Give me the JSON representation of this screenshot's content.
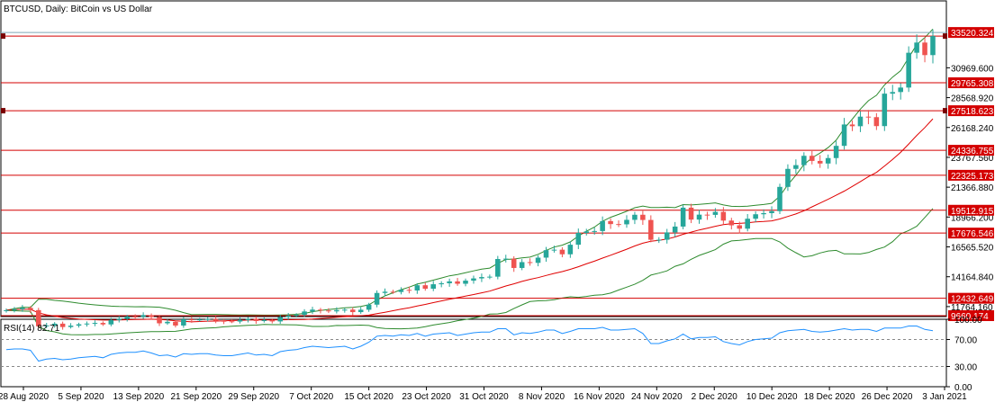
{
  "chart_data": [
    {
      "type": "candlestick",
      "title": "BTCUSD, Daily:  BitCoin vs US Dollar",
      "ylim": [
        10961,
        35120
      ],
      "y_ticks": [
        "30969.600",
        "28568.920",
        "26168.240",
        "23767.560",
        "21366.880",
        "18966.200",
        "16565.520",
        "14164.840",
        "11764.160"
      ],
      "x_ticks": [
        "28 Aug 2020",
        "5 Sep 2020",
        "13 Sep 2020",
        "21 Sep 2020",
        "29 Sep 2020",
        "7 Oct 2020",
        "15 Oct 2020",
        "23 Oct 2020",
        "31 Oct 2020",
        "8 Nov 2020",
        "16 Nov 2020",
        "24 Nov 2020",
        "2 Dec 2020",
        "10 Dec 2020",
        "18 Dec 2020",
        "26 Dec 2020",
        "3 Jan 2021"
      ],
      "levels": [
        "33520.324",
        "29765.308",
        "27518.623",
        "24336.755",
        "22325.173",
        "19512.915",
        "17676.546",
        "12432.649",
        "9660.174"
      ],
      "marked_levels": [
        "33520.324",
        "27518.623"
      ],
      "current_price": "33520.324",
      "colors": {
        "bull": "#26a69a",
        "bear": "#ef5350",
        "level": "#d40000",
        "price_line": "#7fa6b8",
        "ma": "#e00000",
        "bands": "#2e8b2e"
      },
      "close": [
        11470,
        11550,
        11660,
        11480,
        10180,
        10250,
        10390,
        10120,
        10230,
        10340,
        10400,
        10450,
        10330,
        10680,
        10790,
        10970,
        10940,
        11080,
        10920,
        10420,
        10540,
        10240,
        10740,
        10690,
        10730,
        10770,
        10620,
        10580,
        10560,
        10680,
        10790,
        10600,
        10680,
        10570,
        10920,
        11030,
        11100,
        11370,
        11520,
        11450,
        11380,
        11480,
        11520,
        11320,
        11510,
        11920,
        12860,
        12960,
        12940,
        13110,
        13060,
        13480,
        13200,
        13560,
        13640,
        13790,
        13600,
        13850,
        14030,
        14140,
        14170,
        15590,
        15620,
        14870,
        15340,
        15280,
        15700,
        16300,
        16340,
        15970,
        16740,
        17690,
        17810,
        17840,
        18640,
        18400,
        18380,
        18740,
        19150,
        18730,
        17140,
        17140,
        17730,
        18200,
        19720,
        18760,
        19160,
        19140,
        19380,
        18680,
        18300,
        18030,
        18830,
        19190,
        19280,
        19440,
        21390,
        22840,
        23140,
        23890,
        23480,
        23270,
        23710,
        24690,
        26410,
        26270,
        27040,
        27000,
        26280,
        28890,
        29020,
        29380,
        32180,
        33000,
        31990,
        33520
      ]
    },
    {
      "type": "line",
      "title": "RSI(14) 82.71",
      "ylim": [
        0,
        100
      ],
      "y_ticks": [
        "100.00",
        "70.00",
        "30.00",
        "0.00"
      ],
      "levels": [
        70,
        30
      ],
      "color": "#1e90ff",
      "values": [
        55,
        56,
        56,
        54,
        38,
        41,
        42,
        40,
        41,
        43,
        44,
        45,
        43,
        48,
        50,
        51,
        51,
        53,
        50,
        46,
        47,
        44,
        49,
        48,
        49,
        49,
        47,
        46,
        46,
        48,
        50,
        47,
        48,
        46,
        52,
        54,
        55,
        58,
        60,
        59,
        58,
        59,
        60,
        56,
        60,
        66,
        75,
        76,
        75,
        77,
        76,
        79,
        75,
        78,
        79,
        80,
        76,
        78,
        80,
        81,
        81,
        86,
        86,
        77,
        80,
        79,
        81,
        84,
        84,
        79,
        82,
        86,
        86,
        86,
        88,
        84,
        84,
        85,
        86,
        79,
        64,
        64,
        68,
        71,
        78,
        71,
        73,
        73,
        74,
        67,
        64,
        62,
        67,
        70,
        71,
        72,
        80,
        83,
        84,
        85,
        82,
        81,
        82,
        84,
        86,
        84,
        85,
        85,
        82,
        87,
        87,
        87,
        90,
        90,
        85,
        83
      ]
    }
  ],
  "rsi_label": "RSI(14) 82.71"
}
